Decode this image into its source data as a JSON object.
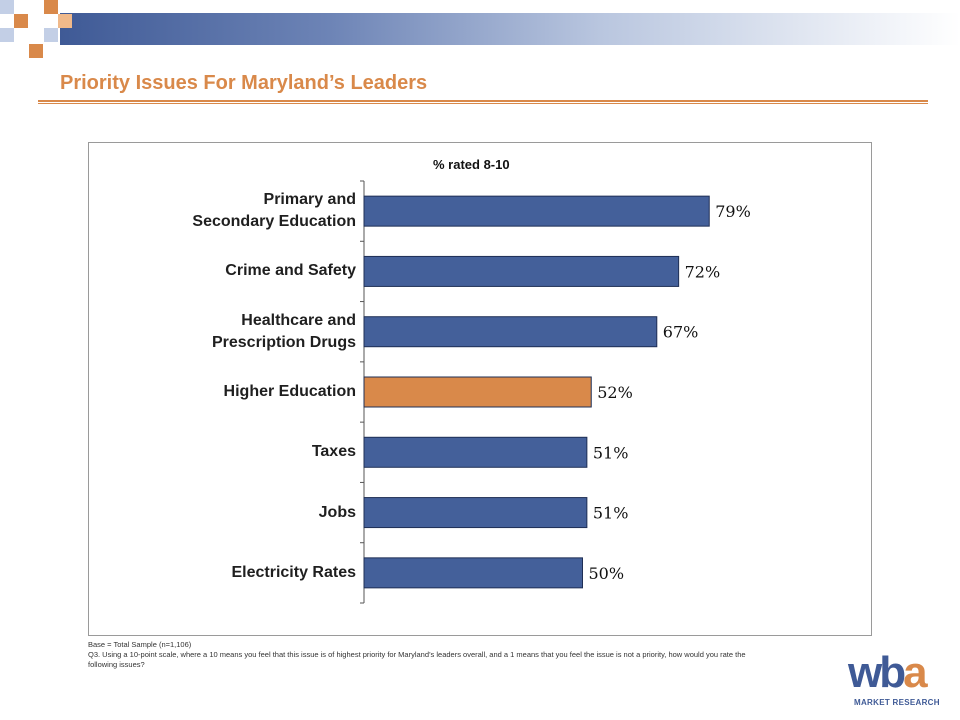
{
  "slide": {
    "title": "Priority Issues For Maryland’s Leaders",
    "colors": {
      "accent": "#d9894a",
      "brand_blue": "#3f5a96",
      "highlight": "#d9894a"
    }
  },
  "chart_data": {
    "type": "bar",
    "orientation": "horizontal",
    "subtitle": "% rated 8-10",
    "categories": [
      "Primary and Secondary Education",
      "Crime and Safety",
      "Healthcare and Prescription Drugs",
      "Higher Education",
      "Taxes",
      "Jobs",
      "Electricity Rates"
    ],
    "category_lines": [
      [
        "Primary and",
        "Secondary Education"
      ],
      [
        "Crime and Safety"
      ],
      [
        "Healthcare and",
        "Prescription Drugs"
      ],
      [
        "Higher Education"
      ],
      [
        "Taxes"
      ],
      [
        "Jobs"
      ],
      [
        "Electricity Rates"
      ]
    ],
    "values": [
      79,
      72,
      67,
      52,
      51,
      51,
      50
    ],
    "labels": [
      "79%",
      "72%",
      "67%",
      "52%",
      "51%",
      "51%",
      "50%"
    ],
    "highlight_index": 3,
    "bar_color": "#44609a",
    "highlight_color": "#d9894a",
    "xlim": [
      0,
      100
    ],
    "grid": false,
    "xlabel": "",
    "ylabel": ""
  },
  "footnote": {
    "base": "Base = Total Sample (n=1,106)",
    "question": "Q3. Using a 10-point scale, where a 10 means you feel that this issue is of highest priority for Maryland’s leaders overall, and a 1 means that you feel the issue is not a priority, how would you rate the following issues?"
  },
  "logo": {
    "word_main": "wb",
    "word_accent": "a",
    "tagline": "MARKET RESEARCH"
  }
}
